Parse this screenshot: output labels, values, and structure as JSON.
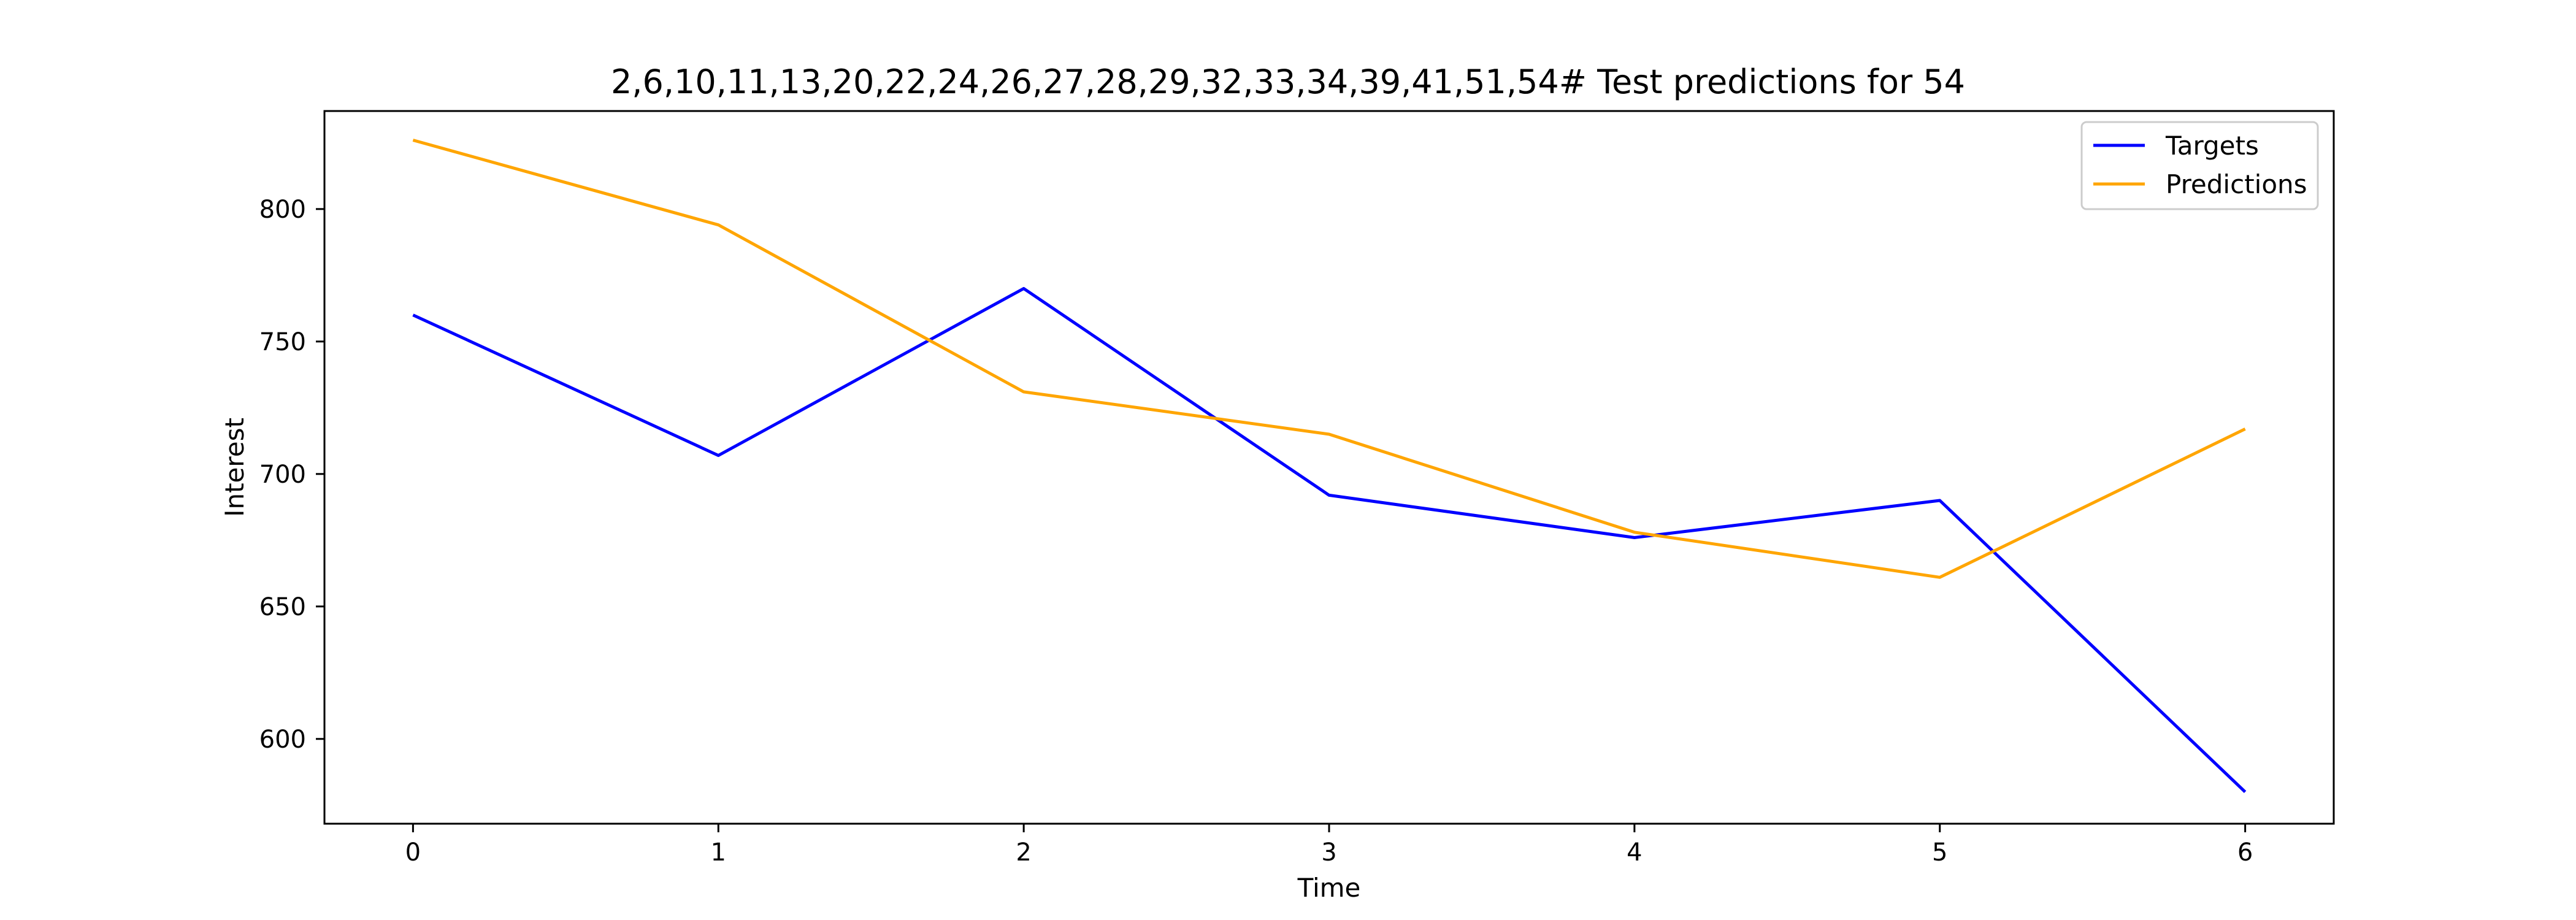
{
  "chart_data": {
    "type": "line",
    "title": "2,6,10,11,13,20,22,24,26,27,28,29,32,33,34,39,41,51,54# Test predictions for 54",
    "xlabel": "Time",
    "ylabel": "Interest",
    "x": [
      0,
      1,
      2,
      3,
      4,
      5,
      6
    ],
    "xlim": [
      -0.29,
      6.29
    ],
    "ylim": [
      568,
      837
    ],
    "xticks": [
      0,
      1,
      2,
      3,
      4,
      5,
      6
    ],
    "yticks": [
      600,
      650,
      700,
      750,
      800
    ],
    "grid": false,
    "legend_position": "top-right",
    "series": [
      {
        "name": "Targets",
        "color": "#0000ff",
        "values": [
          760,
          707,
          770,
          692,
          676,
          690,
          580
        ]
      },
      {
        "name": "Predictions",
        "color": "#ffa500",
        "values": [
          826,
          794,
          731,
          715,
          678,
          661,
          717
        ]
      }
    ]
  }
}
